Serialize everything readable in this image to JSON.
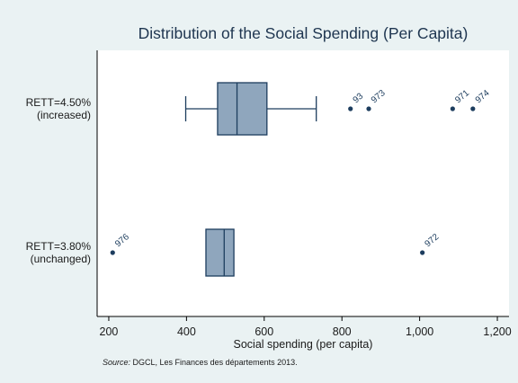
{
  "chart_data": {
    "type": "boxplot",
    "title": "Distribution of the Social Spending (Per Capita)",
    "xlabel": "Social spending (per capita)",
    "xlim": [
      170,
      1230
    ],
    "xticks": [
      200,
      400,
      600,
      800,
      1000,
      1200
    ],
    "xtick_labels": [
      "200",
      "400",
      "600",
      "800",
      "1,000",
      "1,200"
    ],
    "groups": [
      {
        "label_line1": "RETT=4.50%",
        "label_line2": "(increased)",
        "whisker_low": 398,
        "q1": 480,
        "median": 530,
        "q3": 607,
        "whisker_high": 734,
        "outliers": [
          {
            "value": 822,
            "label": "93"
          },
          {
            "value": 869,
            "label": "973"
          },
          {
            "value": 1085,
            "label": "971"
          },
          {
            "value": 1137,
            "label": "974"
          }
        ]
      },
      {
        "label_line1": "RETT=3.80%",
        "label_line2": "(unchanged)",
        "whisker_low": 450,
        "q1": 450,
        "median": 497,
        "q3": 522,
        "whisker_high": 522,
        "outliers": [
          {
            "value": 210,
            "label": "976"
          },
          {
            "value": 1007,
            "label": "972"
          }
        ]
      }
    ],
    "grid": false,
    "colors": {
      "box_fill": "#8fa6bd",
      "box_stroke": "#1d3d5e",
      "outlier": "#1d3d5e",
      "plot_bg": "#ffffff",
      "page_bg": "#eaf2f3"
    }
  },
  "source": {
    "label": "Source:",
    "text": " DGCL, Les Finances des départements 2013."
  }
}
